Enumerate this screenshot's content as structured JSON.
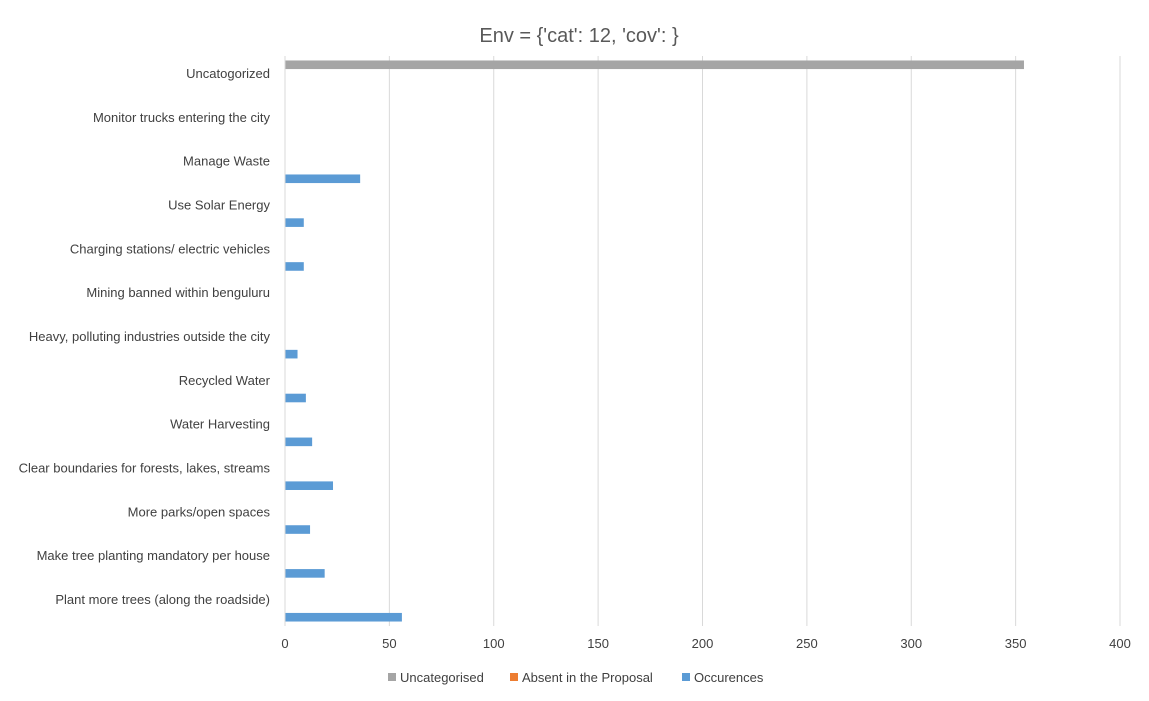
{
  "chart_data": {
    "type": "bar",
    "orientation": "horizontal",
    "title": "Env = {'cat': 12, 'cov': }",
    "xlabel": "",
    "ylabel": "",
    "xlim": [
      0,
      400
    ],
    "xticks": [
      0,
      50,
      100,
      150,
      200,
      250,
      300,
      350,
      400
    ],
    "grid": true,
    "legend_position": "bottom",
    "categories": [
      "Uncatogorized",
      "Monitor trucks entering the city",
      "Manage Waste",
      "Use Solar Energy",
      "Charging stations/ electric vehicles",
      "Mining banned within benguluru",
      "Heavy, polluting industries outside the city",
      "Recycled Water",
      "Water Harvesting",
      "Clear boundaries for forests, lakes, streams",
      "More parks/open spaces",
      "Make tree planting mandatory  per house",
      "Plant more trees (along the roadside)"
    ],
    "series": [
      {
        "name": "Uncategorised",
        "color": "#a5a5a5",
        "values": [
          354,
          0,
          0,
          0,
          0,
          0,
          0,
          0,
          0,
          0,
          0,
          0,
          0
        ]
      },
      {
        "name": "Absent in the Proposal",
        "color": "#ed7d31",
        "values": [
          0,
          0,
          0,
          0,
          0,
          0,
          0,
          0,
          0,
          0,
          0,
          0,
          0
        ]
      },
      {
        "name": "Occurences",
        "color": "#5b9bd5",
        "values": [
          0,
          0,
          36,
          9,
          9,
          0,
          6,
          10,
          13,
          23,
          12,
          19,
          56
        ]
      }
    ]
  }
}
